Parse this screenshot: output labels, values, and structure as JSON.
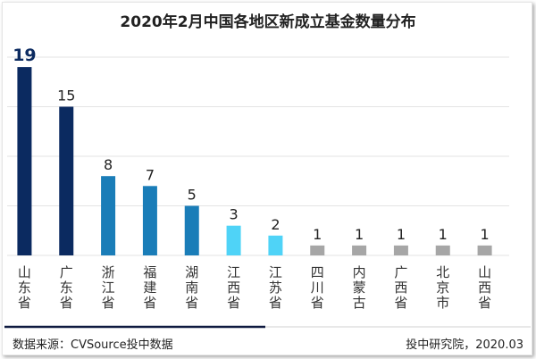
{
  "chart_data": {
    "type": "bar",
    "title": "2020年2月中国各地区新成立基金数量分布",
    "categories": [
      "山东省",
      "广东省",
      "浙江省",
      "福建省",
      "湖南省",
      "江西省",
      "江苏省",
      "四川省",
      "内蒙古",
      "广西省",
      "北京市",
      "山西省"
    ],
    "values": [
      19,
      15,
      8,
      7,
      5,
      3,
      2,
      1,
      1,
      1,
      1,
      1
    ],
    "ylim": [
      0,
      20
    ],
    "grid": true,
    "colors": [
      "#0b2a60",
      "#0b2a60",
      "#1a7db8",
      "#1a7db8",
      "#1a7db8",
      "#4fd3f7",
      "#4fd3f7",
      "#a6a6a6",
      "#a6a6a6",
      "#a6a6a6",
      "#a6a6a6",
      "#a6a6a6"
    ]
  },
  "footer": {
    "source": "数据来源：CVSource投中数据",
    "credit": "投中研究院，2020.03"
  }
}
